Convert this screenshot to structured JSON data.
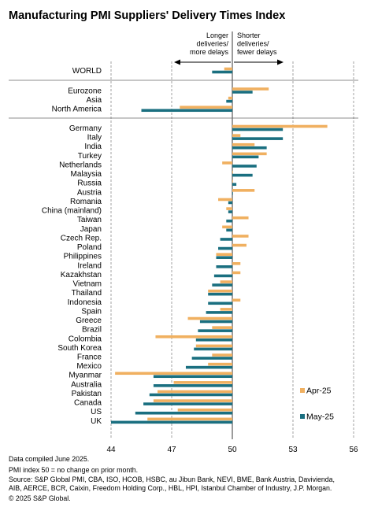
{
  "chart_data": {
    "type": "bar",
    "orientation": "horizontal",
    "title": "Manufacturing PMI Suppliers' Delivery Times Index",
    "annotation_left": [
      "Longer",
      "deliveries/",
      "more delays"
    ],
    "annotation_right": [
      "Shorter",
      "deliveries/",
      "fewer delays"
    ],
    "xlim": [
      44,
      56
    ],
    "ticks": [
      44,
      47,
      50,
      53,
      56
    ],
    "baseline": 50,
    "legend_placement": "lower-right",
    "groups": [
      [
        "WORLD"
      ],
      [
        "Eurozone",
        "Asia",
        "North America"
      ],
      [
        "Germany",
        "Italy",
        "India",
        "Turkey",
        "Netherlands",
        "Malaysia",
        "Russia",
        "Austria",
        "Romania",
        "China (mainland)",
        "Taiwan",
        "Japan",
        "Czech Rep.",
        "Poland",
        "Philippines",
        "Ireland",
        "Kazakhstan",
        "Vietnam",
        "Thailand",
        "Indonesia",
        "Spain",
        "Greece",
        "Brazil",
        "Colombia",
        "South Korea",
        "France",
        "Mexico",
        "Myanmar",
        "Australia",
        "Pakistan",
        "Canada",
        "US",
        "UK"
      ]
    ],
    "series": [
      {
        "name": "Apr-25",
        "color": "#f0b060",
        "values": [
          49.6,
          51.8,
          49.8,
          47.4,
          54.7,
          50.4,
          51.1,
          51.7,
          49.5,
          50.0,
          50.0,
          51.1,
          49.3,
          49.7,
          50.8,
          49.5,
          50.8,
          50.7,
          49.2,
          50.4,
          50.4,
          49.4,
          48.8,
          50.4,
          49.4,
          47.8,
          49.0,
          46.2,
          48.2,
          49.0,
          48.8,
          44.2,
          47.1,
          46.3,
          46.1,
          47.3,
          45.8
        ]
      },
      {
        "name": "May-25",
        "color": "#1a6f80",
        "values": [
          49.0,
          51.0,
          49.7,
          45.5,
          52.5,
          52.5,
          51.7,
          51.3,
          51.2,
          51.0,
          50.2,
          50.0,
          49.8,
          49.8,
          49.7,
          49.7,
          49.4,
          49.3,
          49.2,
          49.2,
          49.1,
          49.0,
          48.8,
          48.8,
          48.7,
          48.4,
          48.3,
          48.2,
          48.1,
          48.0,
          47.7,
          46.1,
          46.1,
          45.9,
          45.6,
          45.2,
          44.0
        ]
      }
    ]
  },
  "footnotes": [
    "Data compiled June 2025.",
    "PMI index 50 = no change on prior month.",
    "Source: S&P Global PMI, CBA, ISO, HCOB, HSBC, au Jibun Bank, NEVI, BME, Bank Austria, Davivienda,",
    "AIB, AERCE, BCR, Caixin, Freedom Holding Corp., HBL, HPI, Istanbul Chamber of Industry, J.P. Morgan.",
    "© 2025 S&P Global."
  ]
}
